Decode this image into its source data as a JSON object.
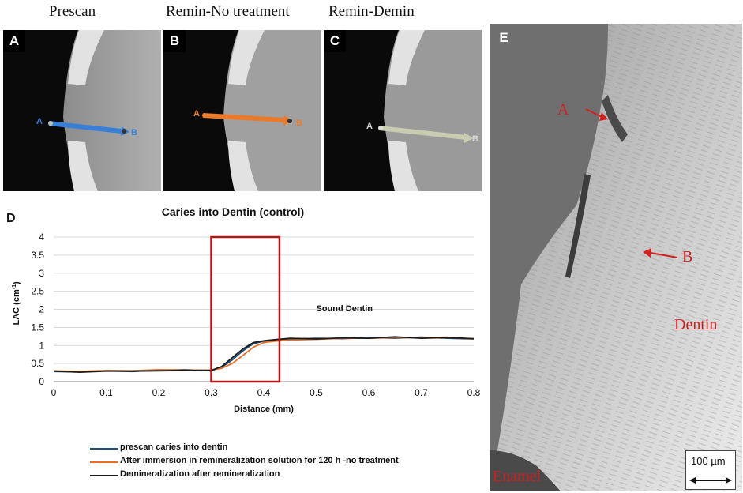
{
  "headers": {
    "a": "Prescan",
    "b": "Remin-No treatment",
    "c": "Remin-Demin"
  },
  "panels": {
    "a": {
      "badge": "A",
      "start": "A",
      "end": "B",
      "color": "#3a7fd6"
    },
    "b": {
      "badge": "B",
      "start": "A",
      "end": "B",
      "color": "#e97a2a"
    },
    "c": {
      "badge": "C",
      "start": "A",
      "end": "B",
      "color": "#c9ccb0"
    }
  },
  "chart": {
    "badge": "D",
    "annotation": "Sound Dentin",
    "highlight_color": "#b01818"
  },
  "chart_data": {
    "type": "line",
    "title": "Caries into Dentin (control)",
    "xlabel": "Distance (mm)",
    "ylabel": "LAC (cm",
    "ylabel_sup": "-1",
    "ylabel_tail": ")",
    "xlim": [
      0,
      0.8
    ],
    "ylim": [
      0,
      4
    ],
    "xticks": [
      "0",
      "0.1",
      "0.2",
      "0.3",
      "0.4",
      "0.5",
      "0.6",
      "0.7",
      "0.8"
    ],
    "yticks": [
      "0",
      "0.5",
      "1",
      "1.5",
      "2",
      "2.5",
      "3",
      "3.5",
      "4"
    ],
    "grid": "horizontal",
    "highlight_range": [
      0.3,
      0.43
    ],
    "x": [
      0,
      0.05,
      0.1,
      0.15,
      0.2,
      0.25,
      0.3,
      0.32,
      0.34,
      0.36,
      0.38,
      0.4,
      0.42,
      0.45,
      0.5,
      0.55,
      0.6,
      0.65,
      0.7,
      0.75,
      0.8
    ],
    "series": [
      {
        "name": "prescan caries into dentin",
        "color": "#1f4e79",
        "values": [
          0.28,
          0.27,
          0.3,
          0.28,
          0.32,
          0.33,
          0.3,
          0.4,
          0.6,
          0.85,
          1.05,
          1.12,
          1.15,
          1.18,
          1.2,
          1.19,
          1.22,
          1.2,
          1.23,
          1.2,
          1.18
        ]
      },
      {
        "name": "After immersion in remineralization solution for 120 h -no treatment",
        "color": "#e8702a",
        "values": [
          0.3,
          0.28,
          0.31,
          0.3,
          0.33,
          0.32,
          0.32,
          0.37,
          0.5,
          0.72,
          0.95,
          1.08,
          1.12,
          1.15,
          1.17,
          1.2,
          1.2,
          1.22,
          1.21,
          1.23,
          1.18
        ]
      },
      {
        "name": "Demineralization after remineralization",
        "color": "#1a1a1a",
        "values": [
          0.29,
          0.26,
          0.29,
          0.29,
          0.3,
          0.31,
          0.31,
          0.42,
          0.66,
          0.9,
          1.08,
          1.13,
          1.16,
          1.2,
          1.18,
          1.21,
          1.2,
          1.24,
          1.2,
          1.22,
          1.19
        ]
      }
    ]
  },
  "sem": {
    "badge": "E",
    "label_a": "A",
    "label_b": "B",
    "dentin": "Dentin",
    "enamel": "Enamel",
    "scale": "100 µm"
  }
}
